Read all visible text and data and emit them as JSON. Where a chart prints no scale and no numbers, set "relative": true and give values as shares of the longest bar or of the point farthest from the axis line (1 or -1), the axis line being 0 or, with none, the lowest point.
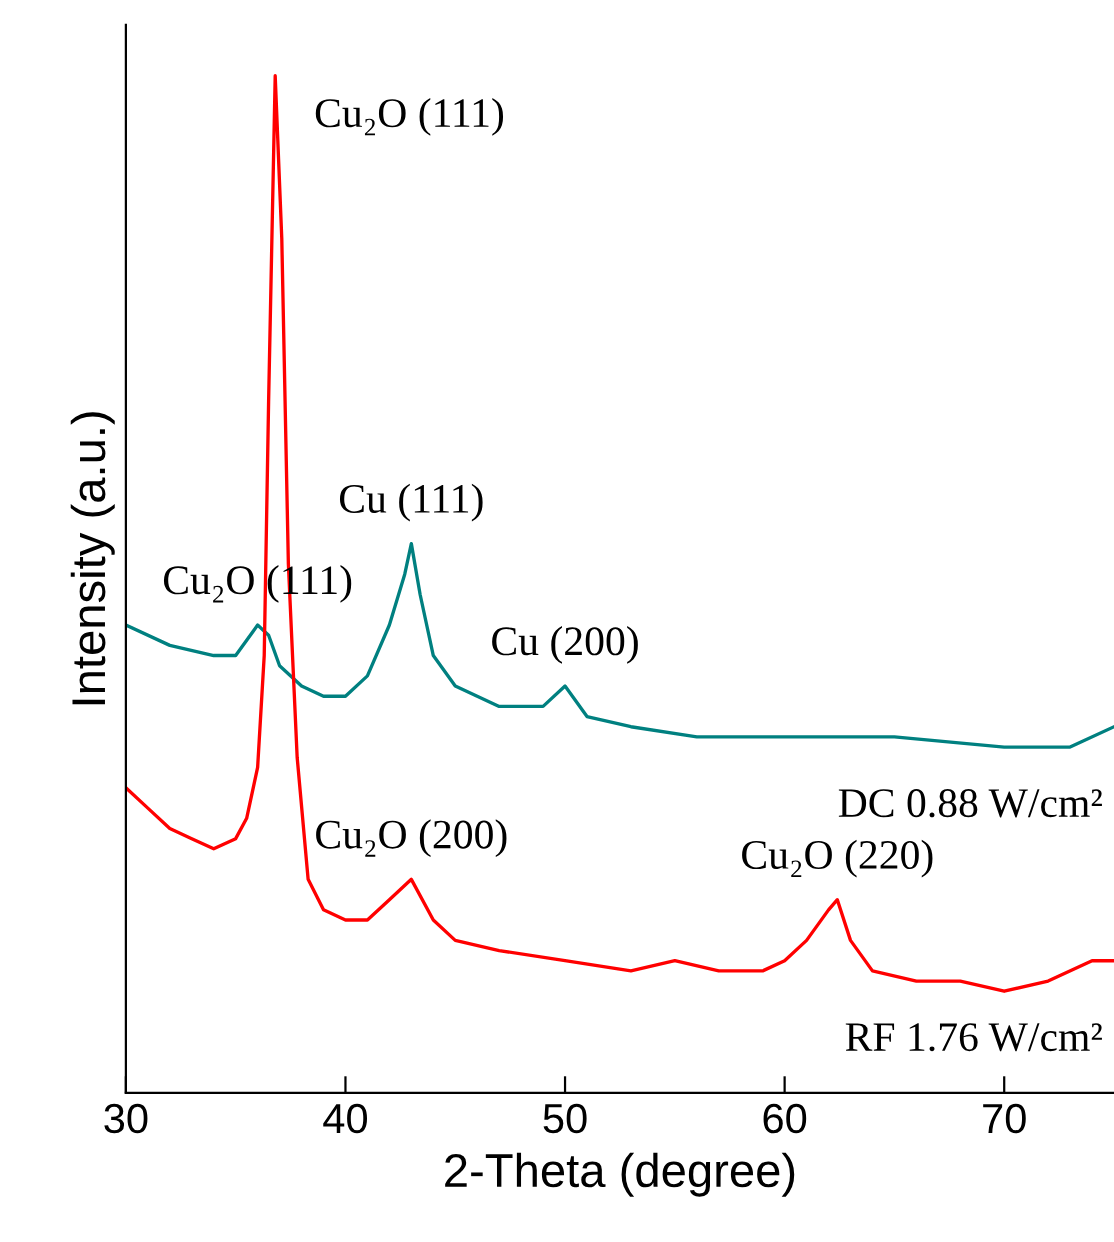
{
  "chart_data": {
    "type": "line",
    "relative": true,
    "xlabel": "2-Theta (degree)",
    "ylabel": "Intensity (a.u.)",
    "xlim": [
      30,
      75
    ],
    "xticks": [
      30,
      40,
      50,
      60,
      70
    ],
    "tick_labels": "x",
    "grid": false,
    "legend": false,
    "series": [
      {
        "name": "DC 0.88 W/cm²",
        "color": "#008080",
        "x": [
          30,
          32,
          34,
          35,
          36,
          36.5,
          37,
          38,
          39,
          40,
          41,
          42,
          42.7,
          43,
          43.4,
          44,
          45,
          47,
          49,
          50,
          51,
          53,
          56,
          60,
          65,
          70,
          73,
          75
        ],
        "values": [
          0.46,
          0.44,
          0.43,
          0.43,
          0.46,
          0.45,
          0.42,
          0.4,
          0.39,
          0.39,
          0.41,
          0.46,
          0.51,
          0.54,
          0.49,
          0.43,
          0.4,
          0.38,
          0.38,
          0.4,
          0.37,
          0.36,
          0.35,
          0.35,
          0.35,
          0.34,
          0.34,
          0.36
        ]
      },
      {
        "name": "RF 1.76 W/cm²",
        "color": "#ff0000",
        "x": [
          30,
          31,
          32,
          33,
          34,
          35,
          35.5,
          36,
          36.3,
          36.5,
          36.8,
          37.1,
          37.4,
          37.8,
          38.3,
          39,
          40,
          41,
          42,
          43,
          44,
          45,
          47,
          50,
          53,
          55,
          57,
          59,
          60,
          61,
          62,
          62.4,
          63,
          64,
          66,
          68,
          70,
          72,
          74,
          75
        ],
        "values": [
          0.3,
          0.28,
          0.26,
          0.25,
          0.24,
          0.25,
          0.27,
          0.32,
          0.43,
          0.68,
          1.0,
          0.84,
          0.52,
          0.33,
          0.21,
          0.18,
          0.17,
          0.17,
          0.19,
          0.21,
          0.17,
          0.15,
          0.14,
          0.13,
          0.12,
          0.13,
          0.12,
          0.12,
          0.13,
          0.15,
          0.18,
          0.19,
          0.15,
          0.12,
          0.11,
          0.11,
          0.1,
          0.11,
          0.13,
          0.13
        ]
      }
    ],
    "annotations": [
      {
        "text": "Cu₂O (111)",
        "x": 36.8,
        "y": 1.0
      },
      {
        "text": "Cu₂O (111)",
        "x": 36,
        "y": 0.46
      },
      {
        "text": "Cu (111)",
        "x": 43,
        "y": 0.54
      },
      {
        "text": "Cu (200)",
        "x": 50,
        "y": 0.4
      },
      {
        "text": "Cu₂O (200)",
        "x": 43,
        "y": 0.21
      },
      {
        "text": "Cu₂O (220)",
        "x": 62.4,
        "y": 0.19
      }
    ]
  }
}
